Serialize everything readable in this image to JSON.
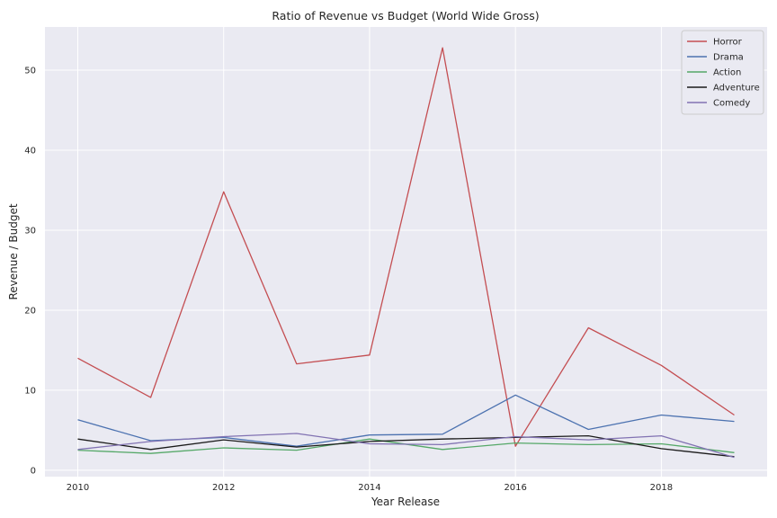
{
  "chart_data": {
    "type": "line",
    "title": "Ratio of Revenue vs Budget (World Wide Gross)",
    "xlabel": "Year Release",
    "ylabel": "Revenue / Budget",
    "x": [
      2010,
      2011,
      2012,
      2013,
      2014,
      2015,
      2016,
      2017,
      2018,
      2019
    ],
    "xlim": [
      2009.55,
      2019.45
    ],
    "ylim": [
      -0.8,
      55.4
    ],
    "xticks": [
      2010,
      2012,
      2014,
      2016,
      2018
    ],
    "yticks": [
      0,
      10,
      20,
      30,
      40,
      50
    ],
    "grid": true,
    "legend_position": "top-right",
    "series": [
      {
        "name": "Horror",
        "color": "#c44e52",
        "values": [
          14.0,
          9.1,
          34.8,
          13.3,
          14.4,
          52.8,
          3.0,
          17.8,
          13.1,
          6.9
        ]
      },
      {
        "name": "Drama",
        "color": "#4c72b0",
        "values": [
          6.3,
          3.7,
          4.1,
          3.0,
          4.4,
          4.5,
          9.4,
          5.1,
          6.9,
          6.1
        ]
      },
      {
        "name": "Action",
        "color": "#55a868",
        "values": [
          2.5,
          2.1,
          2.8,
          2.5,
          3.9,
          2.6,
          3.4,
          3.2,
          3.3,
          2.2
        ]
      },
      {
        "name": "Adventure",
        "color": "#1a1a1a",
        "values": [
          3.9,
          2.6,
          3.8,
          2.9,
          3.6,
          3.9,
          4.1,
          4.3,
          2.7,
          1.7
        ]
      },
      {
        "name": "Comedy",
        "color": "#8172b2",
        "values": [
          2.6,
          3.6,
          4.2,
          4.6,
          3.3,
          3.2,
          4.2,
          3.8,
          4.3,
          1.6
        ]
      }
    ]
  }
}
